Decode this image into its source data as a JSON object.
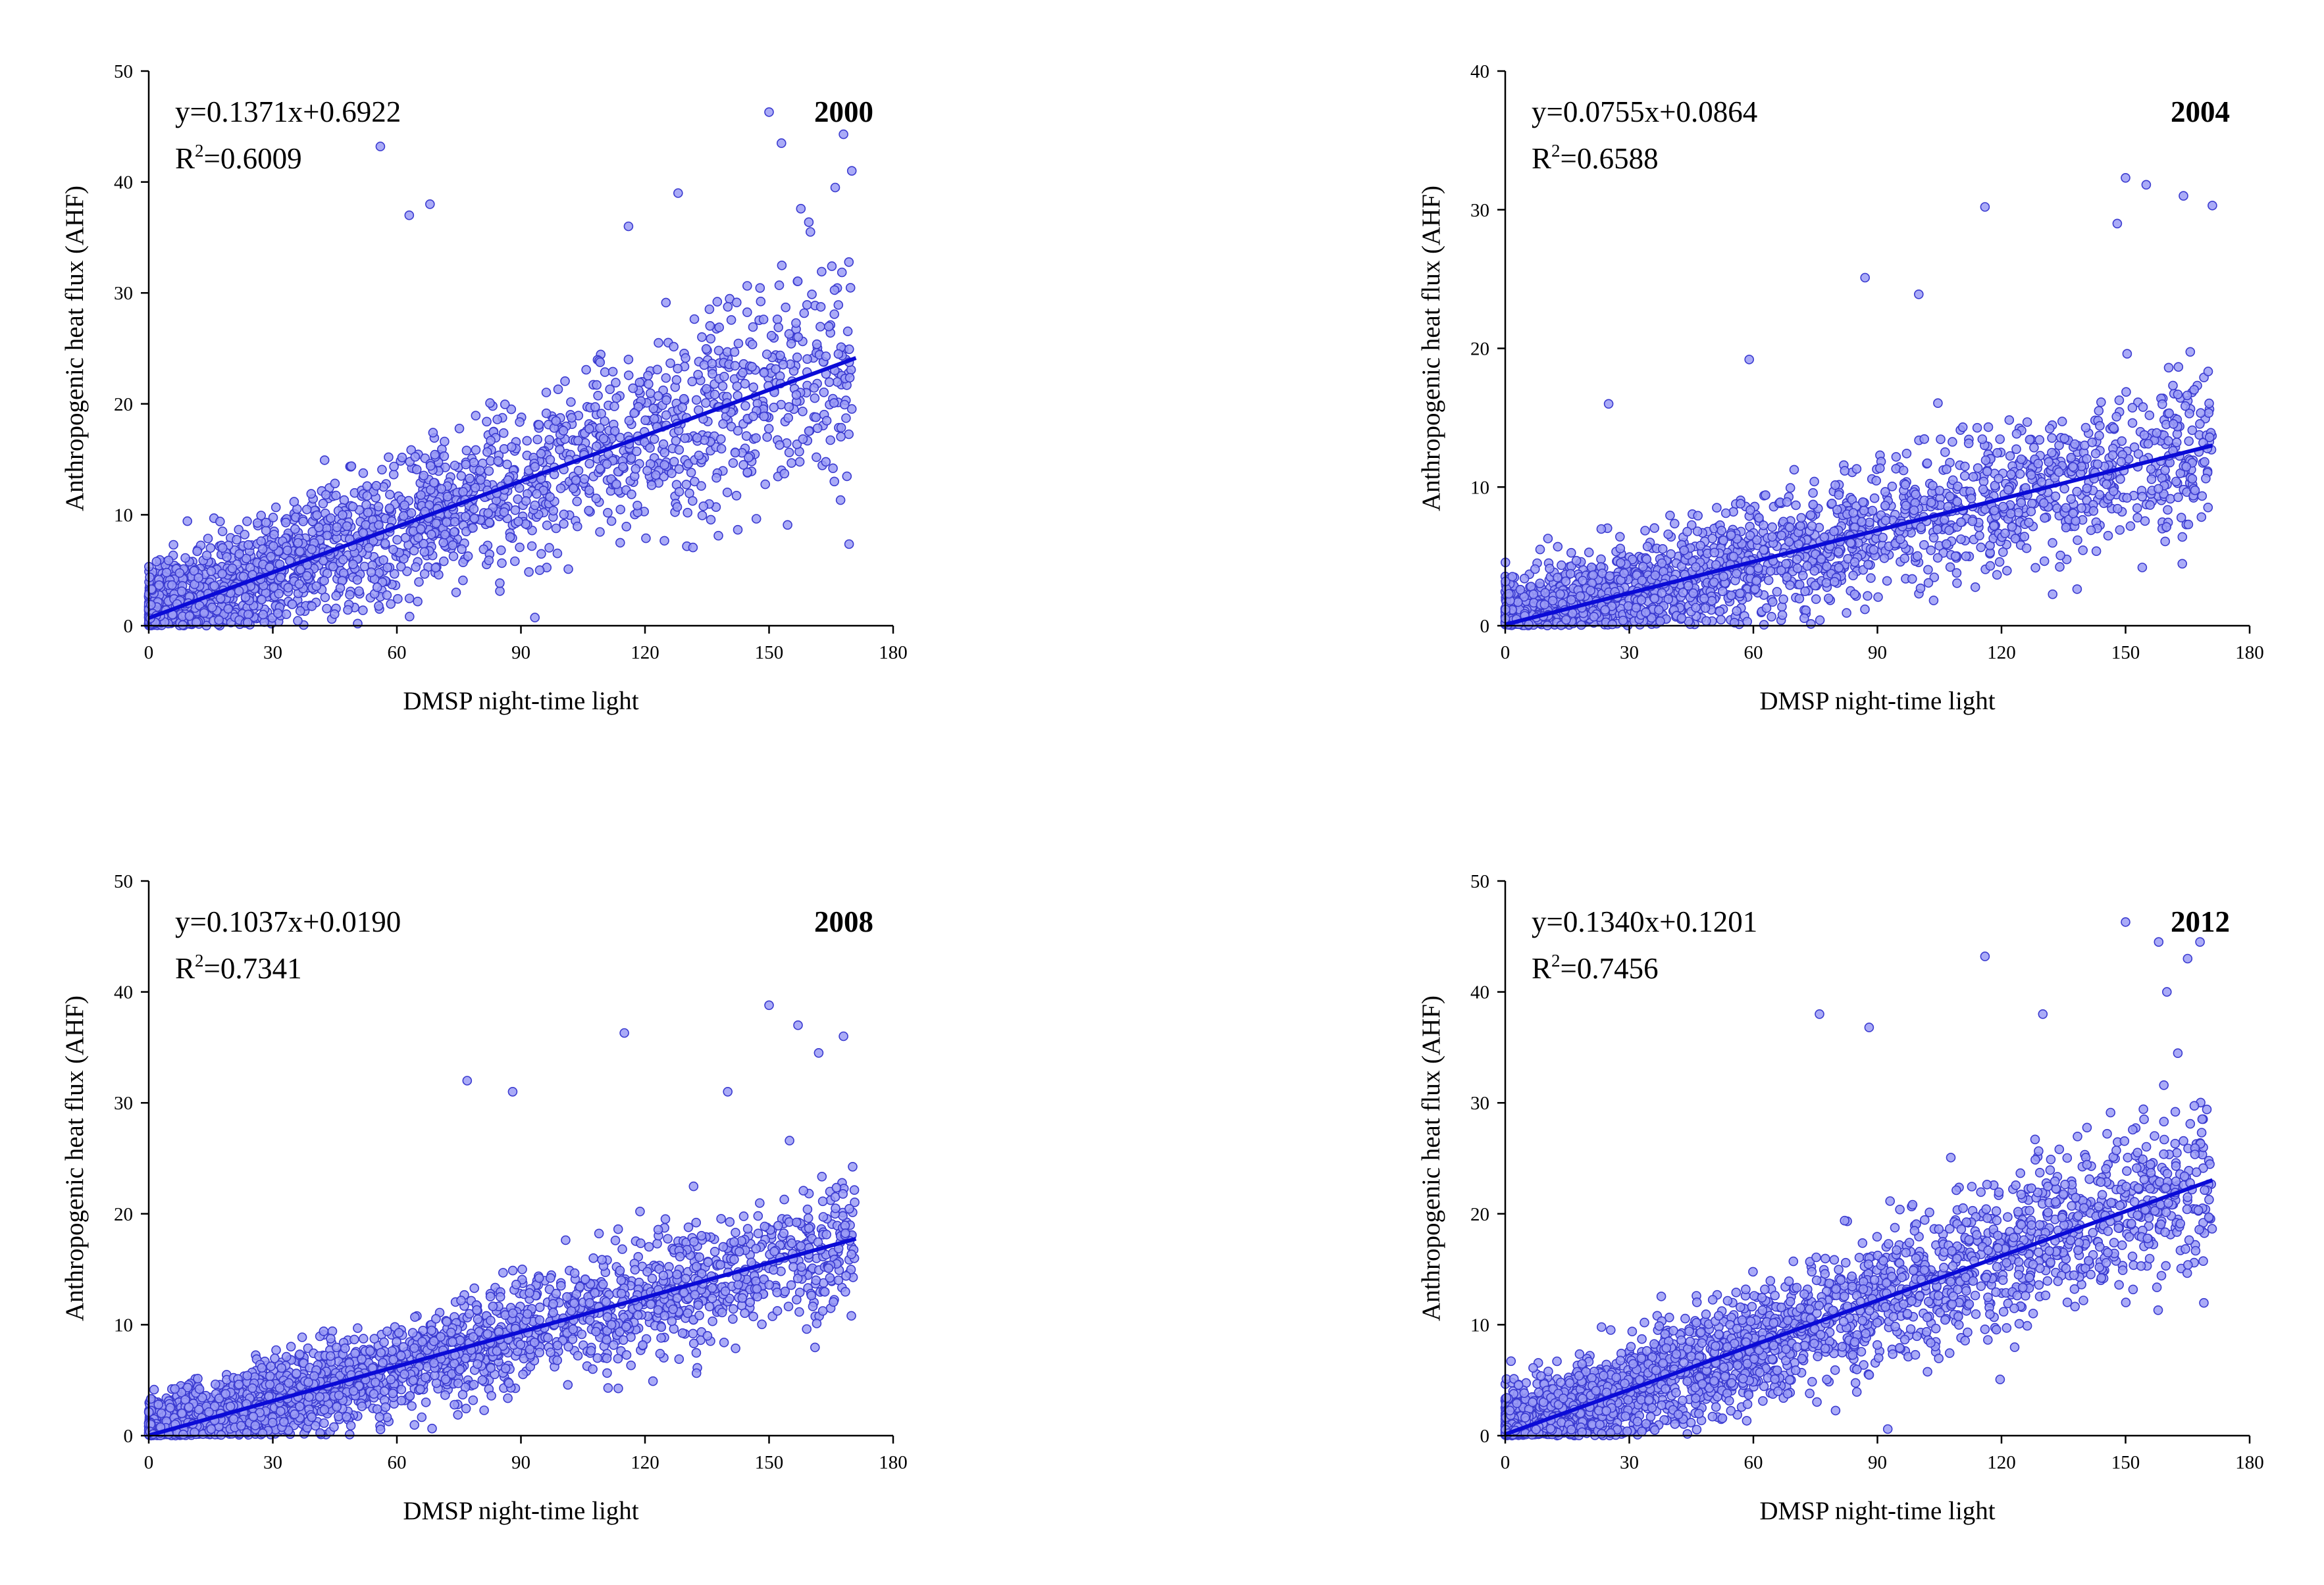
{
  "chart_data": [
    {
      "type": "scatter",
      "year": "2000",
      "equation_text": "y=0.1371x+0.6922",
      "r2_prefix": "R",
      "r2_sup": "2",
      "r2_value": "=0.6009",
      "slope": 0.1371,
      "intercept": 0.6922,
      "r2": 0.6009,
      "xlabel": "DMSP night-time light",
      "ylabel": "Anthropogenic heat flux (AHF)",
      "xlim": [
        0,
        180
      ],
      "ylim": [
        0,
        50
      ],
      "xticks": [
        "0",
        "30",
        "60",
        "90",
        "120",
        "150",
        "180"
      ],
      "yticks": [
        "0",
        "10",
        "20",
        "30",
        "40",
        "50"
      ],
      "x_data_max": 171,
      "noise_sd": 4.5,
      "n_points": 2200,
      "outliers": [
        [
          56,
          43.2
        ],
        [
          63,
          37
        ],
        [
          68,
          38
        ],
        [
          150,
          46.3
        ],
        [
          153,
          43.5
        ],
        [
          168,
          44.3
        ],
        [
          170,
          41
        ],
        [
          166,
          39.5
        ],
        [
          128,
          39
        ],
        [
          116,
          36
        ],
        [
          160,
          35.5
        ]
      ]
    },
    {
      "type": "scatter",
      "year": "2004",
      "equation_text": "y=0.0755x+0.0864",
      "r2_prefix": "R",
      "r2_sup": "2",
      "r2_value": "=0.6588",
      "slope": 0.0755,
      "intercept": 0.0864,
      "r2": 0.6588,
      "xlabel": "DMSP night-time light",
      "ylabel": "Anthropogenic heat flux (AHF)",
      "xlim": [
        0,
        180
      ],
      "ylim": [
        0,
        40
      ],
      "xticks": [
        "0",
        "30",
        "60",
        "90",
        "120",
        "150",
        "180"
      ],
      "yticks": [
        "0",
        "10",
        "20",
        "30",
        "40"
      ],
      "x_data_max": 171,
      "noise_sd": 2.6,
      "n_points": 2200,
      "outliers": [
        [
          116,
          30.2
        ],
        [
          150,
          32.3
        ],
        [
          155,
          31.8
        ],
        [
          164,
          31
        ],
        [
          171,
          30.3
        ],
        [
          148,
          29
        ],
        [
          87,
          25.1
        ],
        [
          100,
          23.9
        ],
        [
          59,
          19.2
        ],
        [
          25,
          16
        ]
      ]
    },
    {
      "type": "scatter",
      "year": "2008",
      "equation_text": "y=0.1037x+0.0190",
      "r2_prefix": "R",
      "r2_sup": "2",
      "r2_value": "=0.7341",
      "slope": 0.1037,
      "intercept": 0.019,
      "r2": 0.7341,
      "xlabel": "DMSP night-time light",
      "ylabel": "Anthropogenic heat flux (AHF)",
      "xlim": [
        0,
        180
      ],
      "ylim": [
        0,
        50
      ],
      "xticks": [
        "0",
        "30",
        "60",
        "90",
        "120",
        "150",
        "180"
      ],
      "yticks": [
        "0",
        "10",
        "20",
        "30",
        "40",
        "50"
      ],
      "x_data_max": 171,
      "noise_sd": 2.7,
      "n_points": 2600,
      "outliers": [
        [
          150,
          38.8
        ],
        [
          157,
          37
        ],
        [
          168,
          36
        ],
        [
          115,
          36.3
        ],
        [
          77,
          32
        ],
        [
          88,
          31
        ],
        [
          162,
          34.5
        ],
        [
          140,
          31
        ]
      ]
    },
    {
      "type": "scatter",
      "year": "2012",
      "equation_text": "y=0.1340x+0.1201",
      "r2_prefix": "R",
      "r2_sup": "2",
      "r2_value": "=0.7456",
      "slope": 0.134,
      "intercept": 0.1201,
      "r2": 0.7456,
      "xlabel": "DMSP night-time light",
      "ylabel": "Anthropogenic heat flux (AHF)",
      "xlim": [
        0,
        180
      ],
      "ylim": [
        0,
        50
      ],
      "xticks": [
        "0",
        "30",
        "60",
        "90",
        "120",
        "150",
        "180"
      ],
      "yticks": [
        "0",
        "10",
        "20",
        "30",
        "40",
        "50"
      ],
      "x_data_max": 171,
      "noise_sd": 3.5,
      "n_points": 2800,
      "outliers": [
        [
          150,
          46.3
        ],
        [
          158,
          44.5
        ],
        [
          165,
          43
        ],
        [
          116,
          43.2
        ],
        [
          76,
          38
        ],
        [
          88,
          36.8
        ],
        [
          168,
          44.5
        ],
        [
          160,
          40
        ],
        [
          130,
          38
        ]
      ]
    }
  ]
}
